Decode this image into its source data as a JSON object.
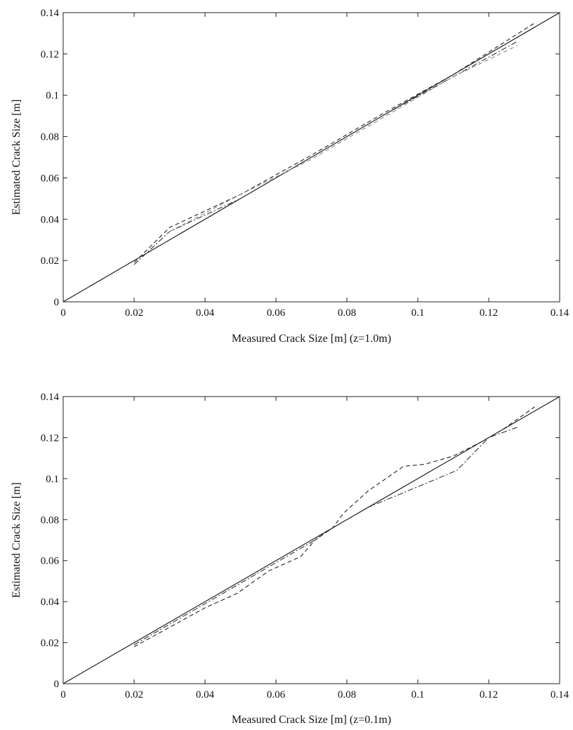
{
  "chart_data": [
    {
      "type": "line",
      "xlabel": "Measured Crack Size [m] (z=1.0m)",
      "ylabel": "Estimated Crack Size [m]",
      "xlim": [
        0,
        0.14
      ],
      "ylim": [
        0,
        0.14
      ],
      "xticks": [
        "0",
        "0.02",
        "0.04",
        "0.06",
        "0.08",
        "0.1",
        "0.12",
        "0.14"
      ],
      "yticks": [
        "0",
        "0.02",
        "0.04",
        "0.06",
        "0.08",
        "0.1",
        "0.12",
        "0.14"
      ],
      "grid": false,
      "series": [
        {
          "style": "solid",
          "color": "#111111",
          "x": [
            0,
            0.14
          ],
          "y": [
            0,
            0.14
          ]
        },
        {
          "style": "dashed",
          "color": "#222222",
          "x": [
            0.02,
            0.03,
            0.05,
            0.07,
            0.09,
            0.11,
            0.133
          ],
          "y": [
            0.019,
            0.036,
            0.052,
            0.071,
            0.091,
            0.11,
            0.135
          ]
        },
        {
          "style": "dashdot",
          "color": "#333333",
          "x": [
            0.02,
            0.03,
            0.05,
            0.07,
            0.09,
            0.11,
            0.128
          ],
          "y": [
            0.018,
            0.034,
            0.05,
            0.07,
            0.09,
            0.109,
            0.126
          ]
        },
        {
          "style": "dashed",
          "color": "#888888",
          "x": [
            0.03,
            0.05,
            0.07,
            0.09,
            0.11,
            0.128
          ],
          "y": [
            0.034,
            0.052,
            0.069,
            0.089,
            0.109,
            0.124
          ]
        }
      ]
    },
    {
      "type": "line",
      "xlabel": "Measured Crack Size [m] (z=0.1m)",
      "ylabel": "Estimated Crack Size [m]",
      "xlim": [
        0,
        0.14
      ],
      "ylim": [
        0,
        0.14
      ],
      "xticks": [
        "0",
        "0.02",
        "0.04",
        "0.06",
        "0.08",
        "0.1",
        "0.12",
        "0.14"
      ],
      "yticks": [
        "0",
        "0.02",
        "0.04",
        "0.06",
        "0.08",
        "0.1",
        "0.12",
        "0.14"
      ],
      "grid": false,
      "series": [
        {
          "style": "solid",
          "color": "#111111",
          "x": [
            0,
            0.14
          ],
          "y": [
            0,
            0.14
          ]
        },
        {
          "style": "dashed",
          "color": "#222222",
          "x": [
            0.02,
            0.04,
            0.049,
            0.058,
            0.067,
            0.071,
            0.076,
            0.079,
            0.086,
            0.096,
            0.102,
            0.11,
            0.118,
            0.124,
            0.133
          ],
          "y": [
            0.018,
            0.037,
            0.044,
            0.055,
            0.062,
            0.07,
            0.076,
            0.083,
            0.094,
            0.106,
            0.107,
            0.111,
            0.118,
            0.124,
            0.135
          ]
        },
        {
          "style": "dashdot",
          "color": "#333333",
          "x": [
            0.02,
            0.04,
            0.06,
            0.07,
            0.076,
            0.086,
            0.1,
            0.111,
            0.12,
            0.128
          ],
          "y": [
            0.019,
            0.039,
            0.059,
            0.069,
            0.076,
            0.086,
            0.096,
            0.104,
            0.12,
            0.125
          ]
        }
      ]
    }
  ]
}
